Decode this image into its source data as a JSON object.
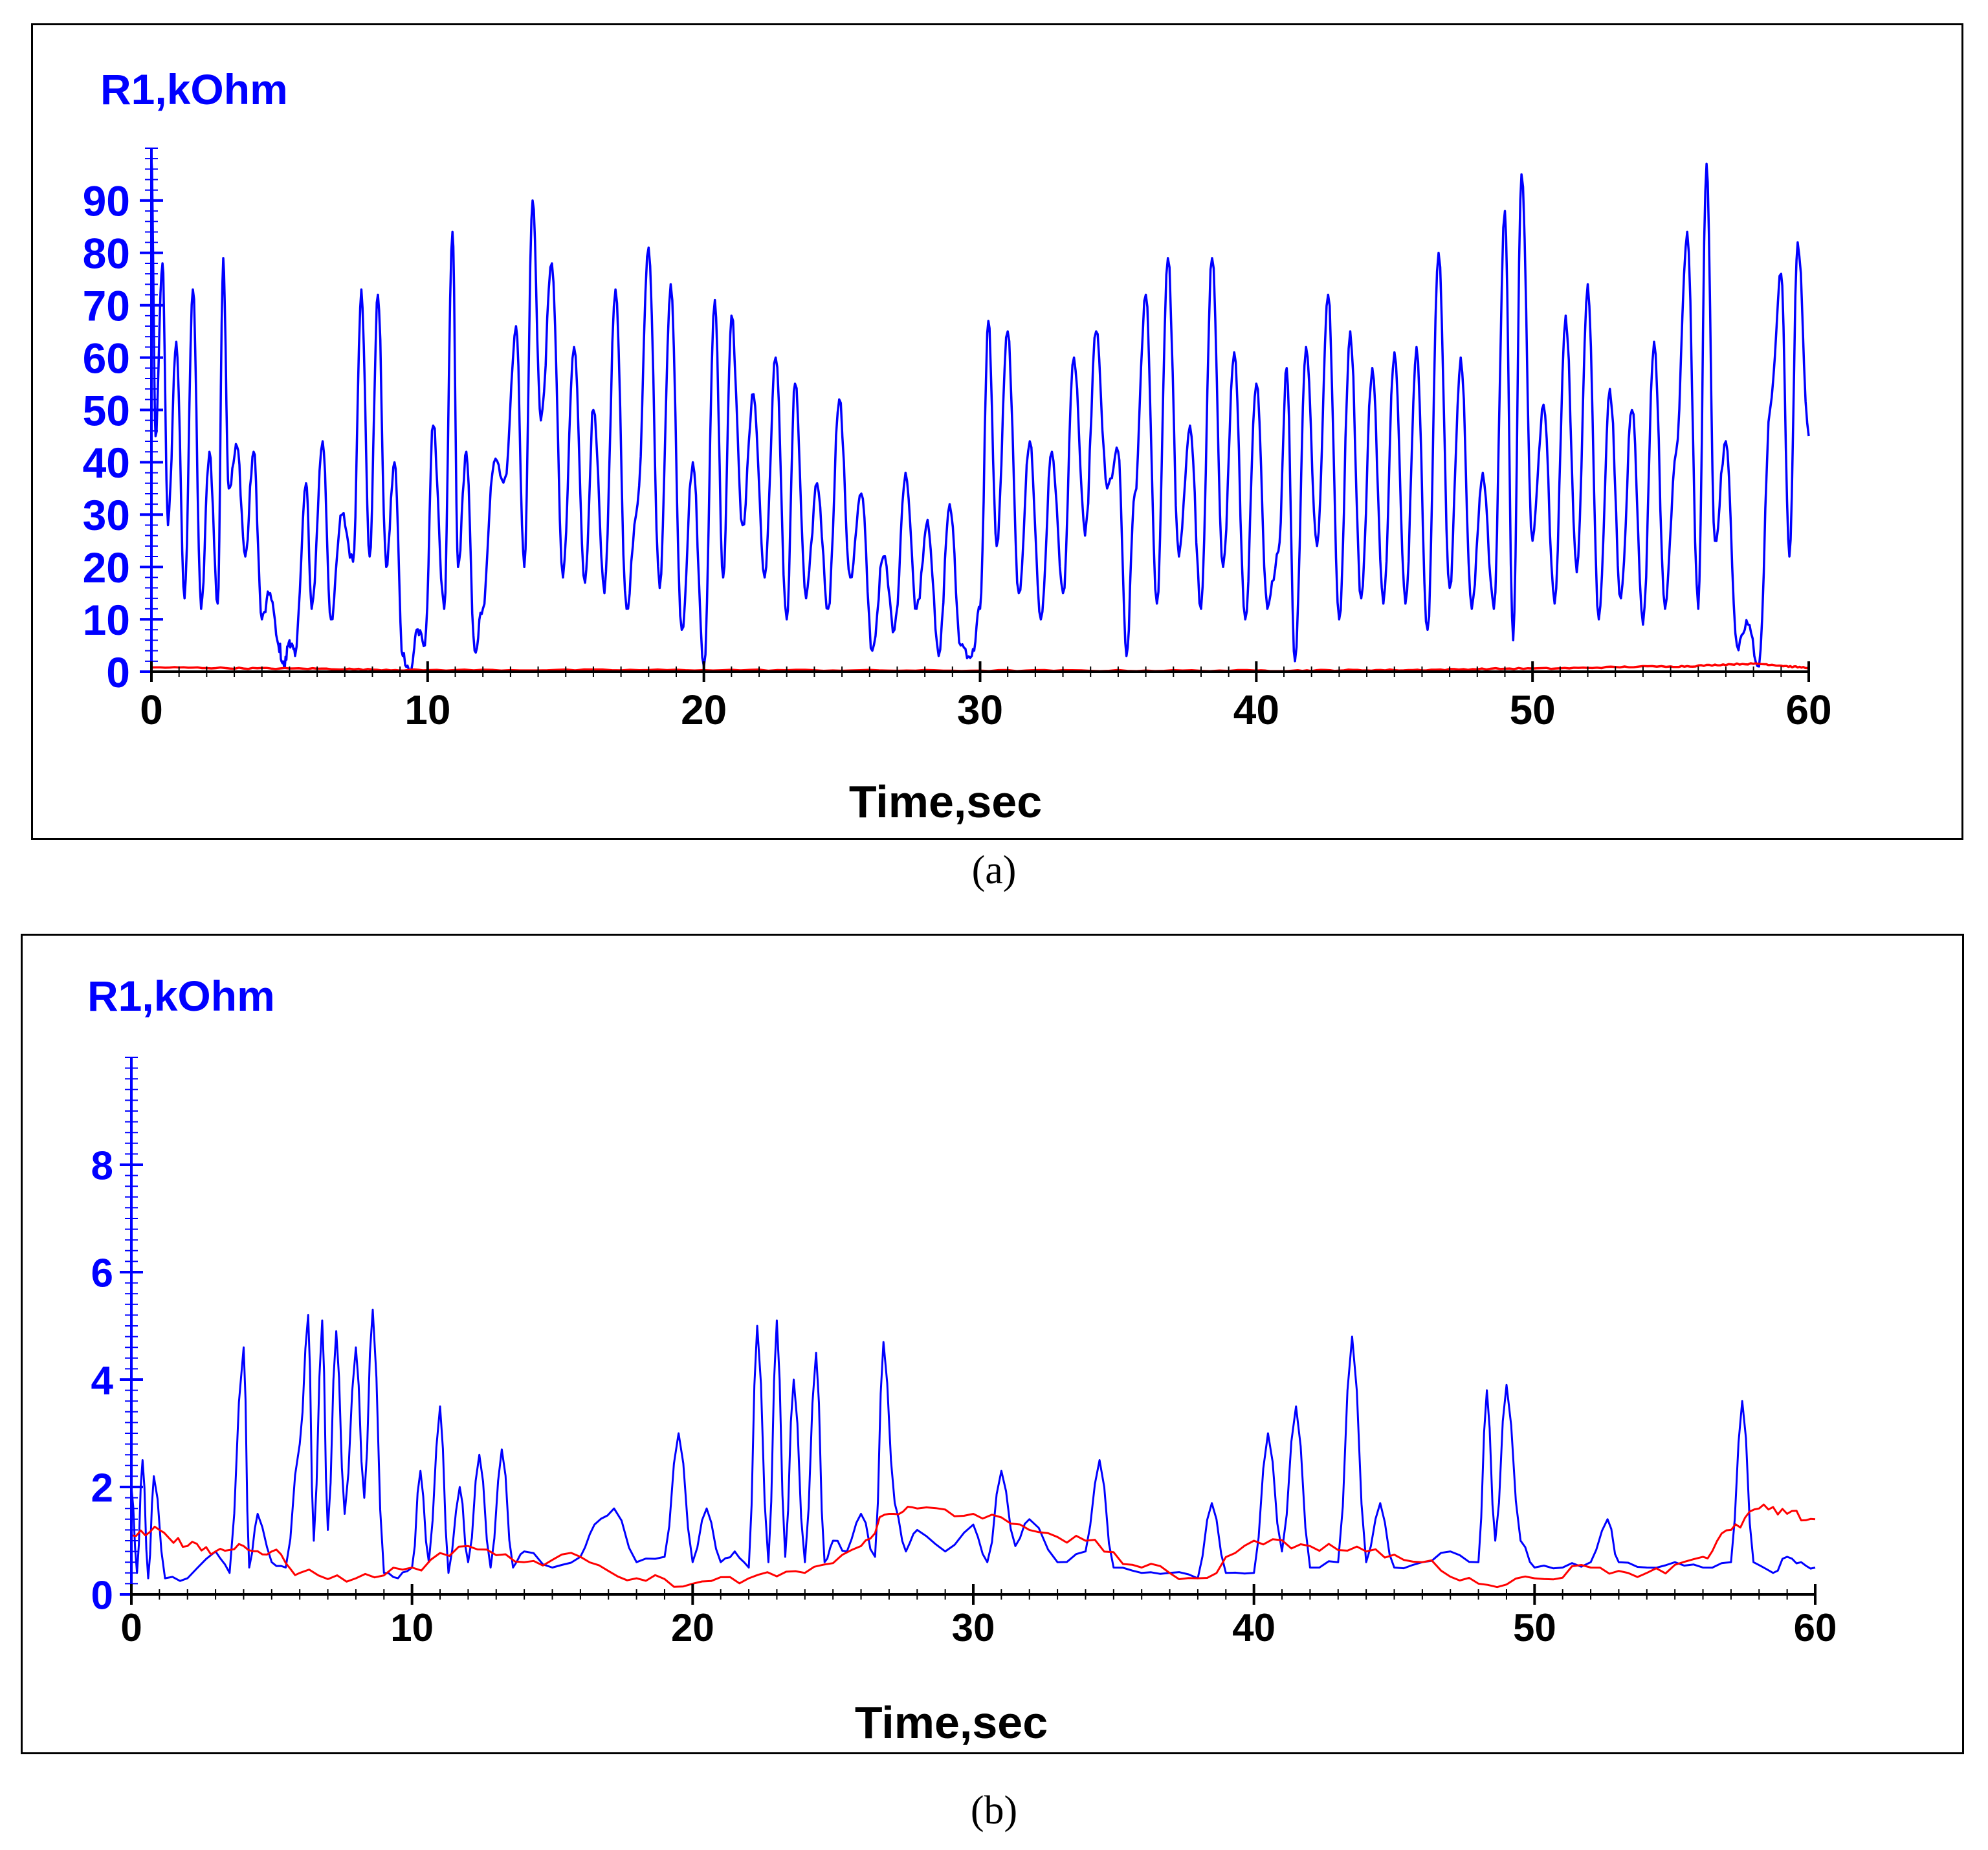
{
  "colors": {
    "series_blue": "#0000ff",
    "series_red": "#ff0000",
    "y_axis": "#0000ff",
    "x_axis": "#000000",
    "frame": "#000000"
  },
  "captions": {
    "a": "(a)",
    "b": "(b)"
  },
  "chart_data": [
    {
      "panel": "a",
      "type": "line",
      "ylabel": "R1,kOhm",
      "xlabel": "Time,sec",
      "xlim": [
        0,
        60
      ],
      "ylim": [
        0,
        100
      ],
      "x_ticks": [
        0,
        10,
        20,
        30,
        40,
        50,
        60
      ],
      "y_ticks": [
        0,
        10,
        20,
        30,
        40,
        50,
        60,
        70,
        80,
        90
      ],
      "grid": false,
      "series": [
        {
          "name": "blue",
          "color": "#0000ff",
          "x": [
            0,
            0.15,
            0.4,
            0.6,
            0.9,
            1.2,
            1.5,
            1.8,
            2.1,
            2.4,
            2.6,
            2.8,
            3.1,
            3.4,
            3.7,
            4.0,
            4.3,
            4.6,
            4.8,
            5.0,
            5.2,
            5.6,
            5.8,
            6.2,
            6.5,
            6.9,
            7.3,
            7.6,
            7.9,
            8.2,
            8.5,
            8.8,
            9.1,
            9.4,
            9.6,
            9.9,
            10.2,
            10.6,
            10.9,
            11.1,
            11.4,
            11.7,
            12.0,
            12.4,
            12.8,
            13.2,
            13.5,
            13.8,
            14.1,
            14.5,
            14.9,
            15.3,
            15.7,
            16.0,
            16.4,
            16.8,
            17.2,
            17.6,
            18.0,
            18.4,
            18.8,
            19.2,
            19.6,
            20.0,
            20.4,
            20.7,
            21.0,
            21.4,
            21.8,
            22.2,
            22.6,
            23.0,
            23.3,
            23.7,
            24.1,
            24.5,
            24.9,
            25.3,
            25.7,
            26.1,
            26.5,
            26.9,
            27.3,
            27.7,
            28.1,
            28.5,
            28.9,
            29.3,
            29.7,
            30.0,
            30.3,
            30.6,
            31.0,
            31.4,
            31.8,
            32.2,
            32.6,
            33.0,
            33.4,
            33.8,
            34.2,
            34.6,
            35.0,
            35.3,
            35.6,
            36.0,
            36.4,
            36.8,
            37.2,
            37.6,
            38.0,
            38.4,
            38.8,
            39.2,
            39.6,
            40.0,
            40.4,
            40.8,
            41.1,
            41.4,
            41.8,
            42.2,
            42.6,
            43.0,
            43.4,
            43.8,
            44.2,
            44.6,
            45.0,
            45.4,
            45.8,
            46.2,
            46.6,
            47.0,
            47.4,
            47.8,
            48.2,
            48.6,
            49.0,
            49.3,
            49.6,
            50.0,
            50.4,
            50.8,
            51.2,
            51.6,
            52.0,
            52.4,
            52.8,
            53.2,
            53.6,
            54.0,
            54.4,
            54.8,
            55.2,
            55.6,
            56.0,
            56.3,
            56.6,
            57.0,
            57.4,
            57.8,
            58.2,
            58.6,
            59.0,
            59.3,
            59.6,
            60.0
          ],
          "y": [
            98,
            45,
            78,
            28,
            63,
            14,
            73,
            12,
            42,
            13,
            79,
            35,
            43,
            22,
            42,
            10,
            15,
            5,
            1,
            6,
            3,
            36,
            12,
            44,
            10,
            30,
            21,
            73,
            22,
            72,
            20,
            40,
            3,
            0,
            8,
            5,
            47,
            12,
            84,
            20,
            42,
            4,
            12,
            40,
            37,
            66,
            20,
            90,
            48,
            78,
            18,
            62,
            17,
            50,
            15,
            73,
            12,
            32,
            81,
            16,
            74,
            8,
            40,
            1,
            71,
            18,
            68,
            28,
            53,
            18,
            60,
            10,
            55,
            14,
            36,
            12,
            52,
            18,
            34,
            4,
            22,
            8,
            38,
            12,
            29,
            3,
            32,
            5,
            3,
            12,
            67,
            24,
            65,
            15,
            44,
            10,
            42,
            15,
            60,
            26,
            65,
            35,
            42,
            3,
            34,
            72,
            13,
            79,
            22,
            47,
            12,
            79,
            20,
            61,
            10,
            55,
            12,
            23,
            58,
            2,
            62,
            24,
            72,
            10,
            65,
            14,
            58,
            13,
            61,
            13,
            62,
            8,
            80,
            16,
            60,
            12,
            38,
            12,
            88,
            6,
            95,
            25,
            51,
            13,
            68,
            19,
            74,
            10,
            54,
            14,
            50,
            9,
            63,
            12,
            42,
            84,
            12,
            97,
            25,
            44,
            5,
            9,
            1,
            50,
            76,
            22,
            82,
            45
          ],
          "jitter": 2.5,
          "steps_per_segment": 7
        },
        {
          "name": "red",
          "color": "#ff0000",
          "x": [
            0,
            5,
            10,
            20,
            30,
            40,
            45,
            50,
            55,
            58,
            60
          ],
          "y": [
            0.8,
            0.6,
            0.3,
            0.3,
            0.2,
            0.2,
            0.3,
            0.6,
            1.0,
            1.5,
            0.8
          ],
          "jitter": 0.25,
          "steps_per_segment": 30
        }
      ]
    },
    {
      "panel": "b",
      "type": "line",
      "ylabel": "R1,kOhm",
      "xlabel": "Time,sec",
      "xlim": [
        0,
        60
      ],
      "ylim": [
        0,
        10
      ],
      "x_ticks": [
        0,
        10,
        20,
        30,
        40,
        50,
        60
      ],
      "y_ticks": [
        0,
        2,
        4,
        6,
        8
      ],
      "grid": false,
      "series": [
        {
          "name": "blue",
          "color": "#0000ff",
          "x": [
            0,
            0.2,
            0.4,
            0.6,
            0.8,
            1.2,
            2.0,
            3.0,
            3.5,
            4.0,
            4.2,
            4.5,
            5.0,
            5.5,
            6.0,
            6.3,
            6.5,
            6.8,
            7.0,
            7.3,
            7.6,
            8.0,
            8.3,
            8.6,
            9.0,
            9.5,
            10.0,
            10.3,
            10.6,
            11.0,
            11.3,
            11.7,
            12.0,
            12.4,
            12.8,
            13.2,
            13.6,
            14.0,
            15.0,
            16.0,
            16.5,
            17.2,
            18.0,
            19.0,
            19.5,
            20.0,
            20.5,
            21.0,
            21.5,
            22.0,
            22.3,
            22.7,
            23.0,
            23.3,
            23.6,
            24.0,
            24.4,
            24.7,
            25.0,
            25.5,
            26.0,
            26.5,
            26.8,
            27.2,
            27.6,
            28.0,
            29.0,
            30.0,
            30.5,
            31.0,
            31.5,
            32.0,
            33.0,
            34.0,
            34.5,
            35.0,
            36.0,
            37.0,
            38.0,
            38.5,
            39.0,
            40.0,
            40.5,
            41.0,
            41.5,
            42.0,
            43.0,
            43.5,
            44.0,
            44.5,
            45.0,
            46.0,
            47.0,
            48.0,
            48.3,
            48.6,
            49.0,
            49.5,
            50.0,
            51.0,
            52.0,
            52.6,
            53.0,
            54.0,
            55.0,
            56.0,
            57.0,
            57.4,
            57.8,
            58.5,
            59.0,
            59.5,
            60.0
          ],
          "y": [
            2.0,
            0.4,
            2.5,
            0.3,
            2.2,
            0.3,
            0.3,
            0.8,
            0.4,
            4.6,
            0.5,
            1.5,
            0.6,
            0.5,
            2.8,
            5.2,
            1.0,
            5.1,
            1.2,
            4.9,
            1.5,
            4.6,
            1.8,
            5.3,
            0.4,
            0.3,
            0.5,
            2.3,
            0.6,
            3.5,
            0.4,
            2.0,
            0.6,
            2.6,
            0.5,
            2.7,
            0.5,
            0.8,
            0.5,
            0.7,
            1.3,
            1.6,
            0.6,
            0.7,
            3.0,
            0.6,
            1.6,
            0.6,
            0.8,
            0.5,
            5.0,
            0.6,
            5.1,
            0.7,
            4.0,
            0.6,
            4.5,
            0.6,
            1.0,
            0.8,
            1.5,
            0.7,
            4.7,
            1.7,
            0.8,
            1.2,
            0.8,
            1.3,
            0.6,
            2.3,
            0.9,
            1.4,
            0.6,
            0.8,
            2.5,
            0.5,
            0.4,
            0.4,
            0.3,
            1.7,
            0.4,
            0.4,
            3.0,
            0.8,
            3.5,
            0.5,
            0.6,
            4.8,
            0.6,
            1.7,
            0.5,
            0.6,
            0.8,
            0.6,
            3.8,
            1.0,
            3.9,
            1.0,
            0.5,
            0.5,
            0.6,
            1.4,
            0.6,
            0.5,
            0.6,
            0.5,
            0.6,
            3.6,
            0.6,
            0.4,
            0.7,
            0.6,
            0.5
          ],
          "jitter": 0.12,
          "steps_per_segment": 3
        },
        {
          "name": "red",
          "color": "#ff0000",
          "x": [
            0,
            1,
            2,
            3,
            4,
            5,
            6,
            8,
            10,
            12,
            14,
            16,
            18,
            20,
            22,
            24,
            26,
            27,
            28,
            30,
            32,
            34,
            36,
            38,
            40,
            42,
            44,
            46,
            48,
            50,
            52,
            54,
            56,
            57,
            58,
            59,
            60
          ],
          "y": [
            1.1,
            1.2,
            0.9,
            0.8,
            0.9,
            0.8,
            0.4,
            0.3,
            0.5,
            0.9,
            0.6,
            0.7,
            0.3,
            0.2,
            0.3,
            0.4,
            0.9,
            1.5,
            1.6,
            1.5,
            1.2,
            1.0,
            0.5,
            0.3,
            1.0,
            0.9,
            0.8,
            0.6,
            0.2,
            0.3,
            0.5,
            0.4,
            0.7,
            1.2,
            1.6,
            1.5,
            1.4
          ],
          "jitter": 0.18,
          "steps_per_segment": 6
        }
      ]
    }
  ]
}
